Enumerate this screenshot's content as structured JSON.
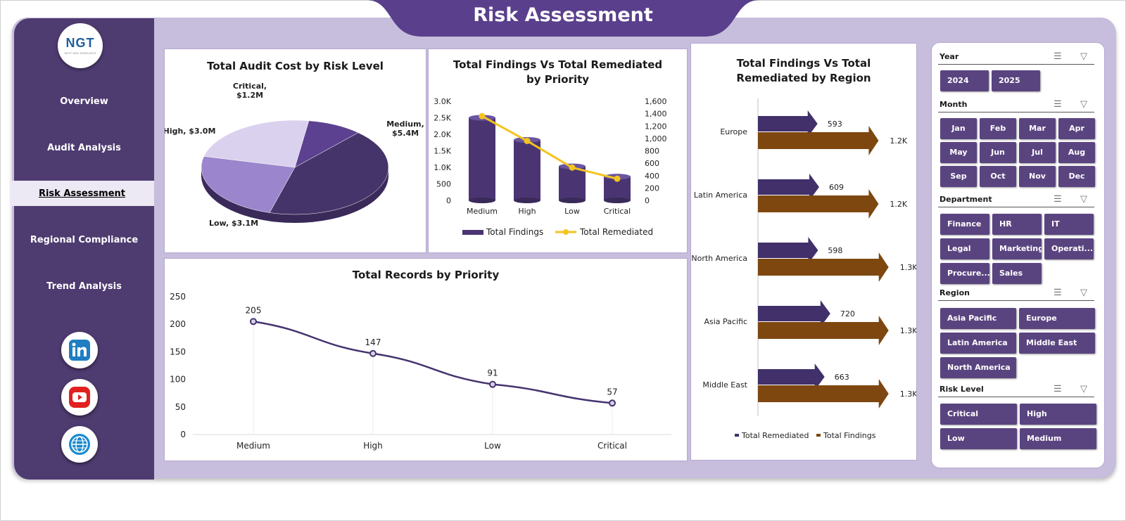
{
  "title": "Risk Assessment",
  "logo": {
    "text": "NGT",
    "subtext": "NEXT GEN TEMPLATES"
  },
  "nav": {
    "items": [
      "Overview",
      "Audit Analysis",
      "Risk Assessment",
      "Regional Compliance",
      "Trend Analysis"
    ],
    "active_index": 2
  },
  "social": [
    "linkedin-icon",
    "youtube-icon",
    "globe-icon"
  ],
  "charts": {
    "pie": {
      "title": "Total Audit Cost by Risk Level",
      "labels": [
        "Critical,\n$1.2M",
        "Medium,\n$5.4M",
        "High, $3.0M",
        "Low, $3.1M"
      ]
    },
    "combo": {
      "title": "Total Findings Vs Total Remediated by Priority",
      "left_ticks": [
        "3.0K",
        "2.5K",
        "2.0K",
        "1.5K",
        "1.0K",
        "500",
        "0"
      ],
      "right_ticks": [
        "1,600",
        "1,400",
        "1,200",
        "1,000",
        "800",
        "600",
        "400",
        "200",
        "0"
      ],
      "categories": [
        "Medium",
        "High",
        "Low",
        "Critical"
      ],
      "legend": [
        "Total Findings",
        "Total Remediated"
      ]
    },
    "region": {
      "title": "Total Findings Vs Total Remediated by Region",
      "legend": [
        "Total Remediated",
        "Total Findings"
      ]
    },
    "line": {
      "title": "Total Records by Priority",
      "y_ticks": [
        "250",
        "200",
        "150",
        "100",
        "50",
        "0"
      ]
    }
  },
  "chart_data": [
    {
      "type": "pie",
      "title": "Total Audit Cost by Risk Level",
      "categories": [
        "Critical",
        "Medium",
        "Low",
        "High"
      ],
      "values": [
        1.2,
        5.4,
        3.1,
        3.0
      ],
      "unit": "$M",
      "colors": [
        "#5c4190",
        "#45346a",
        "#9b86cd",
        "#d9d1ee"
      ]
    },
    {
      "type": "bar",
      "title": "Total Findings Vs Total Remediated by Priority",
      "categories": [
        "Medium",
        "High",
        "Low",
        "Critical"
      ],
      "series": [
        {
          "name": "Total Findings",
          "values": [
            2500,
            1830,
            1030,
            720
          ],
          "axis": "left"
        },
        {
          "name": "Total Remediated",
          "values": [
            1360,
            960,
            530,
            350
          ],
          "axis": "right"
        }
      ],
      "ylim": [
        0,
        3000
      ],
      "y2lim": [
        0,
        1600
      ]
    },
    {
      "type": "bar",
      "title": "Total Findings Vs Total Remediated by Region",
      "categories": [
        "Europe",
        "Latin America",
        "North America",
        "Asia Pacific",
        "Middle East"
      ],
      "series": [
        {
          "name": "Total Remediated",
          "values": [
            593,
            609,
            598,
            720,
            663
          ],
          "labels": [
            "593",
            "609",
            "598",
            "720",
            "663"
          ]
        },
        {
          "name": "Total Findings",
          "values": [
            1200,
            1200,
            1300,
            1300,
            1300
          ],
          "labels": [
            "1.2K",
            "1.2K",
            "1.3K",
            "1.3K",
            "1.3K"
          ]
        }
      ]
    },
    {
      "type": "line",
      "title": "Total Records by Priority",
      "categories": [
        "Medium",
        "High",
        "Low",
        "Critical"
      ],
      "values": [
        205,
        147,
        91,
        57
      ],
      "ylim": [
        0,
        250
      ]
    }
  ],
  "slicers": [
    {
      "name": "Year",
      "items": [
        "2024",
        "2025"
      ]
    },
    {
      "name": "Month",
      "items": [
        "Jan",
        "Feb",
        "Mar",
        "Apr",
        "May",
        "Jun",
        "Jul",
        "Aug",
        "Sep",
        "Oct",
        "Nov",
        "Dec"
      ]
    },
    {
      "name": "Department",
      "items": [
        "Finance",
        "HR",
        "IT",
        "Legal",
        "Marketing",
        "Operati...",
        "Procure...",
        "Sales"
      ]
    },
    {
      "name": "Region",
      "items": [
        "Asia Pacific",
        "Europe",
        "Latin America",
        "Middle East",
        "North America"
      ]
    },
    {
      "name": "Risk Level",
      "items": [
        "Critical",
        "High",
        "Low",
        "Medium"
      ]
    }
  ]
}
